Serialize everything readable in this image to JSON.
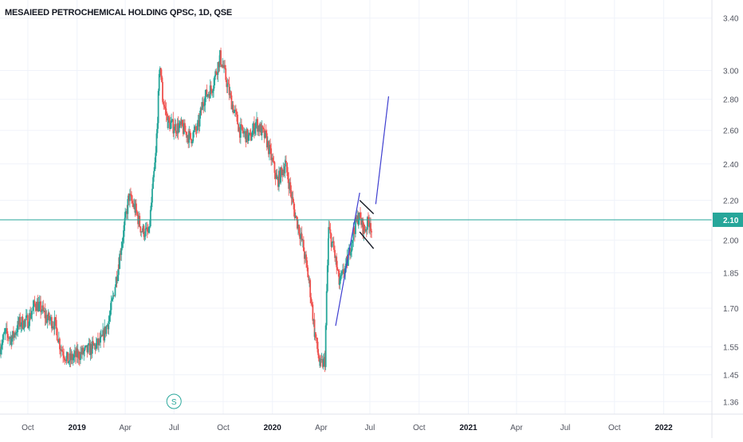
{
  "title": "MESAIEED PETROCHEMICAL HOLDING QPSC, 1D, QSE",
  "colors": {
    "up": "#26a69a",
    "down": "#ef5350",
    "grid": "#f0f3fa",
    "axis_text": "#50535e",
    "price_line": "#26a69a",
    "trend_line": "#3f3fd0",
    "channel_line": "#131722"
  },
  "chart_data": {
    "type": "candlestick",
    "title": "MESAIEED PETROCHEMICAL HOLDING QPSC, 1D, QSE",
    "y_scale": "log",
    "ylim": [
      1.32,
      3.55
    ],
    "xlim": [
      "2018-08-10",
      "2022-04-01"
    ],
    "grid": true,
    "y_ticks": [
      "3.40",
      "3.00",
      "2.80",
      "2.60",
      "2.40",
      "2.20",
      "2.00",
      "1.85",
      "1.70",
      "1.55",
      "1.45",
      "1.36"
    ],
    "x_ticks": [
      {
        "label": "Oct",
        "date": "2018-10-01",
        "bold": false
      },
      {
        "label": "2019",
        "date": "2019-01-01",
        "bold": true
      },
      {
        "label": "Apr",
        "date": "2019-04-01",
        "bold": false
      },
      {
        "label": "Jul",
        "date": "2019-07-01",
        "bold": false
      },
      {
        "label": "Oct",
        "date": "2019-10-01",
        "bold": false
      },
      {
        "label": "2020",
        "date": "2020-01-01",
        "bold": true
      },
      {
        "label": "Apr",
        "date": "2020-04-01",
        "bold": false
      },
      {
        "label": "Jul",
        "date": "2020-07-01",
        "bold": false
      },
      {
        "label": "Oct",
        "date": "2020-10-01",
        "bold": false
      },
      {
        "label": "2021",
        "date": "2021-01-01",
        "bold": true
      },
      {
        "label": "Apr",
        "date": "2021-04-01",
        "bold": false
      },
      {
        "label": "Jul",
        "date": "2021-07-01",
        "bold": false
      },
      {
        "label": "Oct",
        "date": "2021-10-01",
        "bold": false
      },
      {
        "label": "2022",
        "date": "2022-01-01",
        "bold": true
      }
    ],
    "last_price": "2.10",
    "last_price_value": 2.1,
    "series_path": [
      [
        "2018-08-10",
        1.55
      ],
      [
        "2018-08-20",
        1.6
      ],
      [
        "2018-09-01",
        1.58
      ],
      [
        "2018-09-15",
        1.64
      ],
      [
        "2018-10-01",
        1.65
      ],
      [
        "2018-10-15",
        1.72
      ],
      [
        "2018-10-25",
        1.7
      ],
      [
        "2018-11-05",
        1.66
      ],
      [
        "2018-11-20",
        1.64
      ],
      [
        "2018-12-01",
        1.55
      ],
      [
        "2018-12-15",
        1.5
      ],
      [
        "2019-01-01",
        1.52
      ],
      [
        "2019-01-15",
        1.53
      ],
      [
        "2019-02-01",
        1.55
      ],
      [
        "2019-02-15",
        1.57
      ],
      [
        "2019-03-01",
        1.65
      ],
      [
        "2019-03-10",
        1.75
      ],
      [
        "2019-03-20",
        1.9
      ],
      [
        "2019-04-01",
        2.1
      ],
      [
        "2019-04-08",
        2.22
      ],
      [
        "2019-04-20",
        2.15
      ],
      [
        "2019-05-01",
        2.05
      ],
      [
        "2019-05-15",
        2.03
      ],
      [
        "2019-05-28",
        2.45
      ],
      [
        "2019-06-05",
        3.05
      ],
      [
        "2019-06-10",
        2.8
      ],
      [
        "2019-06-20",
        2.65
      ],
      [
        "2019-07-01",
        2.62
      ],
      [
        "2019-07-15",
        2.62
      ],
      [
        "2019-08-01",
        2.55
      ],
      [
        "2019-08-15",
        2.62
      ],
      [
        "2019-08-25",
        2.8
      ],
      [
        "2019-09-10",
        2.88
      ],
      [
        "2019-09-25",
        3.1
      ],
      [
        "2019-10-01",
        3.02
      ],
      [
        "2019-10-15",
        2.8
      ],
      [
        "2019-11-01",
        2.6
      ],
      [
        "2019-11-20",
        2.55
      ],
      [
        "2019-12-01",
        2.65
      ],
      [
        "2019-12-20",
        2.55
      ],
      [
        "2020-01-10",
        2.3
      ],
      [
        "2020-01-25",
        2.4
      ],
      [
        "2020-02-10",
        2.15
      ],
      [
        "2020-02-25",
        2.0
      ],
      [
        "2020-03-10",
        1.8
      ],
      [
        "2020-03-20",
        1.6
      ],
      [
        "2020-03-30",
        1.48
      ],
      [
        "2020-04-08",
        1.5
      ],
      [
        "2020-04-15",
        2.05
      ],
      [
        "2020-04-25",
        1.95
      ],
      [
        "2020-05-05",
        1.8
      ],
      [
        "2020-05-20",
        1.9
      ],
      [
        "2020-06-01",
        2.05
      ],
      [
        "2020-06-10",
        2.12
      ],
      [
        "2020-06-20",
        2.05
      ],
      [
        "2020-07-01",
        2.1
      ],
      [
        "2020-07-05",
        2.03
      ]
    ],
    "drawings": [
      {
        "name": "trend-line-1",
        "kind": "trend",
        "from": [
          "2020-04-28",
          1.63
        ],
        "to": [
          "2020-06-12",
          2.24
        ]
      },
      {
        "name": "trend-line-2",
        "kind": "trend",
        "from": [
          "2020-07-12",
          2.18
        ],
        "to": [
          "2020-08-05",
          2.82
        ]
      },
      {
        "name": "channel-upper",
        "kind": "channel",
        "from": [
          "2020-06-12",
          2.2
        ],
        "to": [
          "2020-07-08",
          2.13
        ]
      },
      {
        "name": "channel-lower",
        "kind": "channel",
        "from": [
          "2020-06-12",
          2.04
        ],
        "to": [
          "2020-07-08",
          1.96
        ]
      }
    ],
    "marker": {
      "label": "S",
      "date": "2019-07-01"
    }
  }
}
